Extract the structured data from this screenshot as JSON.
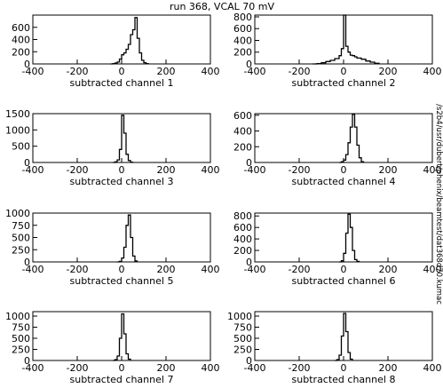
{
  "title": "run 368, VCAL 70 mV",
  "side_label": "/s2b4/usr/dubert/phenix/beamtest/dat368d70.kumac",
  "chart_data": [
    {
      "type": "histogram",
      "xlabel": "subtracted channel  1",
      "xlim": [
        -400,
        400
      ],
      "xticks": [
        -400,
        -200,
        0,
        200,
        400
      ],
      "ylim": [
        0,
        800
      ],
      "yticks": [
        0,
        200,
        400,
        600
      ],
      "x": [
        -50,
        -40,
        -30,
        -20,
        -10,
        0,
        10,
        20,
        30,
        40,
        50,
        60,
        70,
        80,
        90,
        100,
        110,
        120
      ],
      "values": [
        0,
        5,
        15,
        30,
        80,
        150,
        180,
        240,
        320,
        480,
        560,
        760,
        420,
        180,
        60,
        20,
        5,
        0
      ]
    },
    {
      "type": "histogram",
      "xlabel": "subtracted channel  2",
      "xlim": [
        -400,
        400
      ],
      "xticks": [
        -400,
        -200,
        0,
        200,
        400
      ],
      "ylim": [
        0,
        830
      ],
      "yticks": [
        0,
        200,
        400,
        600,
        800
      ],
      "x": [
        -140,
        -120,
        -100,
        -80,
        -60,
        -40,
        -20,
        -10,
        0,
        10,
        20,
        30,
        40,
        50,
        60,
        80,
        100,
        120,
        140,
        160
      ],
      "values": [
        0,
        5,
        20,
        40,
        60,
        90,
        140,
        260,
        830,
        300,
        200,
        150,
        140,
        120,
        100,
        80,
        50,
        30,
        10,
        0
      ]
    },
    {
      "type": "histogram",
      "xlabel": "subtracted channel  3",
      "xlim": [
        -400,
        400
      ],
      "xticks": [
        -400,
        -200,
        0,
        200,
        400
      ],
      "ylim": [
        0,
        1500
      ],
      "yticks": [
        0,
        500,
        1000,
        1500
      ],
      "x": [
        -40,
        -30,
        -20,
        -10,
        0,
        10,
        20,
        30,
        40,
        50
      ],
      "values": [
        0,
        20,
        80,
        400,
        1450,
        900,
        250,
        60,
        10,
        0
      ]
    },
    {
      "type": "histogram",
      "xlabel": "subtracted channel  4",
      "xlim": [
        -400,
        400
      ],
      "xticks": [
        -400,
        -200,
        0,
        200,
        400
      ],
      "ylim": [
        0,
        620
      ],
      "yticks": [
        0,
        200,
        400,
        600
      ],
      "x": [
        -20,
        -10,
        0,
        10,
        20,
        30,
        40,
        50,
        60,
        70,
        80,
        90
      ],
      "values": [
        0,
        10,
        30,
        100,
        250,
        450,
        610,
        450,
        220,
        60,
        10,
        0
      ]
    },
    {
      "type": "histogram",
      "xlabel": "subtracted channel  5",
      "xlim": [
        -400,
        400
      ],
      "xticks": [
        -400,
        -200,
        0,
        200,
        400
      ],
      "ylim": [
        0,
        1000
      ],
      "yticks": [
        0,
        250,
        500,
        750,
        1000
      ],
      "x": [
        -20,
        -10,
        0,
        10,
        20,
        30,
        40,
        50,
        60,
        70
      ],
      "values": [
        0,
        10,
        80,
        300,
        750,
        960,
        500,
        120,
        20,
        0
      ]
    },
    {
      "type": "histogram",
      "xlabel": "subtracted channel  6",
      "xlim": [
        -400,
        400
      ],
      "xticks": [
        -400,
        -200,
        0,
        200,
        400
      ],
      "ylim": [
        0,
        850
      ],
      "yticks": [
        0,
        200,
        400,
        600,
        800
      ],
      "x": [
        -20,
        -10,
        0,
        10,
        20,
        30,
        40,
        50,
        60,
        70
      ],
      "values": [
        0,
        20,
        150,
        500,
        830,
        600,
        200,
        40,
        10,
        0
      ]
    },
    {
      "type": "histogram",
      "xlabel": "subtracted channel  7",
      "xlim": [
        -400,
        400
      ],
      "xticks": [
        -400,
        -200,
        0,
        200,
        400
      ],
      "ylim": [
        0,
        1100
      ],
      "yticks": [
        0,
        250,
        500,
        750,
        1000
      ],
      "x": [
        -40,
        -30,
        -20,
        -10,
        0,
        10,
        20,
        30,
        40
      ],
      "values": [
        0,
        20,
        100,
        500,
        1050,
        600,
        150,
        30,
        0
      ]
    },
    {
      "type": "histogram",
      "xlabel": "subtracted channel  8",
      "xlim": [
        -400,
        400
      ],
      "xticks": [
        -400,
        -200,
        0,
        200,
        400
      ],
      "ylim": [
        0,
        1100
      ],
      "yticks": [
        0,
        250,
        500,
        750,
        1000
      ],
      "x": [
        -40,
        -30,
        -20,
        -10,
        0,
        10,
        20,
        30,
        40
      ],
      "values": [
        0,
        20,
        120,
        550,
        1060,
        650,
        180,
        30,
        0
      ]
    }
  ]
}
